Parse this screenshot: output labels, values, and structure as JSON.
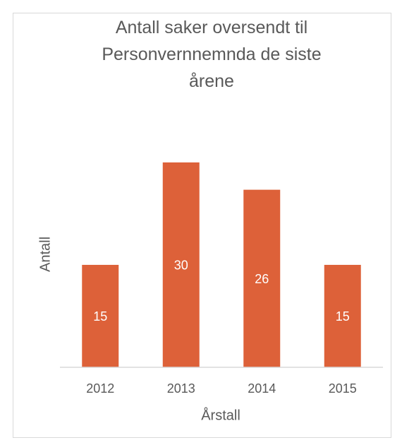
{
  "chart_data": {
    "type": "bar",
    "title": "Antall saker oversendt til Personvernnemnda de siste årene",
    "x_label": "Årstall",
    "y_label": "Antall",
    "categories": [
      "2012",
      "2013",
      "2014",
      "2015"
    ],
    "values": [
      15,
      30,
      26,
      15
    ],
    "color": "#dd6139",
    "ylim": [
      0,
      35
    ],
    "data_labels": true
  }
}
